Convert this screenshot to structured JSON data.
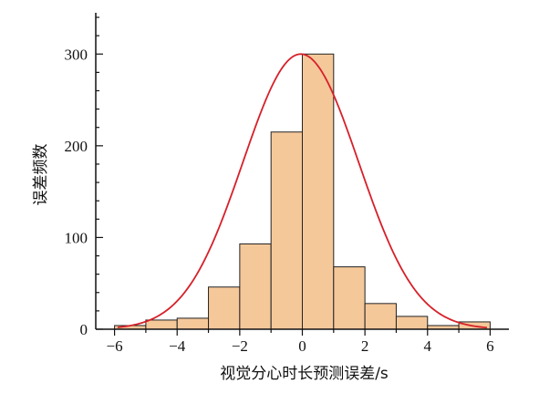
{
  "chart_data": {
    "type": "bar",
    "xlabel": "视觉分心时长预测误差/s",
    "ylabel": "误差频数",
    "xlim": [
      -6.6,
      6.6
    ],
    "ylim": [
      0,
      345
    ],
    "x_ticks": [
      -6,
      -4,
      -2,
      0,
      2,
      4,
      6
    ],
    "y_ticks": [
      0,
      100,
      200,
      300
    ],
    "bin_edges": [
      -6,
      -5,
      -4,
      -3,
      -2,
      -1,
      0,
      1,
      2,
      3,
      4,
      5,
      6
    ],
    "values": [
      4,
      10,
      12,
      46,
      93,
      215,
      300,
      68,
      28,
      14,
      4,
      8
    ],
    "bar_color": "#f5c89a",
    "bar_edge": "#222222",
    "curve": {
      "type": "normal",
      "peak": 300,
      "mean": -0.05,
      "sd": 1.85,
      "range": [
        -5.9,
        5.9
      ],
      "color": "#d6202a"
    }
  }
}
